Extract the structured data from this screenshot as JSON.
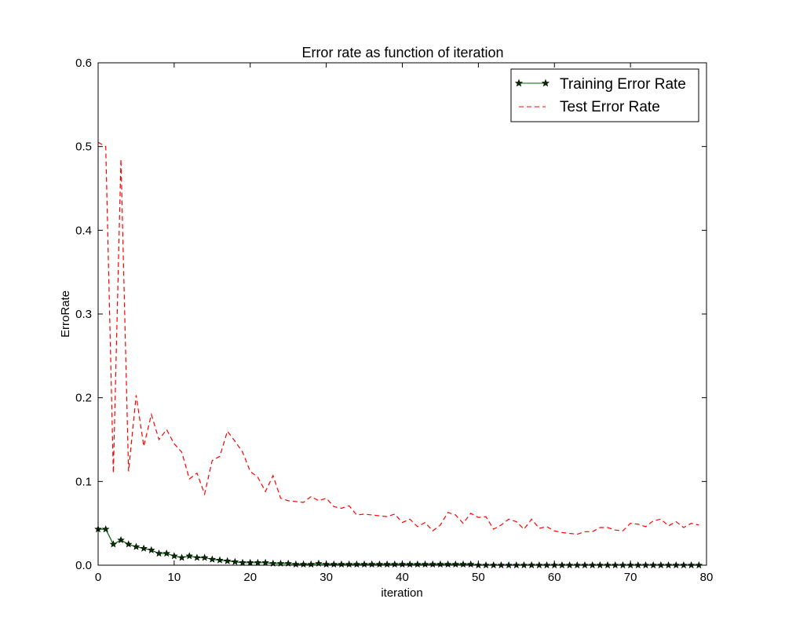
{
  "chart_data": {
    "type": "line",
    "title": "Error rate as function of iteration",
    "xlabel": "iteration",
    "ylabel": "ErroRate",
    "xlim": [
      0,
      80
    ],
    "ylim": [
      0,
      0.6
    ],
    "xticks": [
      0,
      10,
      20,
      30,
      40,
      50,
      60,
      70,
      80
    ],
    "yticks": [
      0.0,
      0.1,
      0.2,
      0.3,
      0.4,
      0.5,
      0.6
    ],
    "xtick_labels": [
      "0",
      "10",
      "20",
      "30",
      "40",
      "50",
      "60",
      "70",
      "80"
    ],
    "ytick_labels": [
      "0.0",
      "0.1",
      "0.2",
      "0.3",
      "0.4",
      "0.5",
      "0.6"
    ],
    "grid": false,
    "legend_position": "top-right",
    "x": [
      0,
      1,
      2,
      3,
      4,
      5,
      6,
      7,
      8,
      9,
      10,
      11,
      12,
      13,
      14,
      15,
      16,
      17,
      18,
      19,
      20,
      21,
      22,
      23,
      24,
      25,
      26,
      27,
      28,
      29,
      30,
      31,
      32,
      33,
      34,
      35,
      36,
      37,
      38,
      39,
      40,
      41,
      42,
      43,
      44,
      45,
      46,
      47,
      48,
      49,
      50,
      51,
      52,
      53,
      54,
      55,
      56,
      57,
      58,
      59,
      60,
      61,
      62,
      63,
      64,
      65,
      66,
      67,
      68,
      69,
      70,
      71,
      72,
      73,
      74,
      75,
      76,
      77,
      78,
      79
    ],
    "series": [
      {
        "name": "Training Error Rate",
        "color": "#006400",
        "style": "solid",
        "marker": "star",
        "values": [
          0.043,
          0.043,
          0.025,
          0.03,
          0.025,
          0.022,
          0.02,
          0.018,
          0.014,
          0.014,
          0.011,
          0.009,
          0.011,
          0.009,
          0.009,
          0.007,
          0.006,
          0.005,
          0.004,
          0.003,
          0.003,
          0.003,
          0.003,
          0.002,
          0.002,
          0.002,
          0.001,
          0.001,
          0.001,
          0.002,
          0.001,
          0.001,
          0.001,
          0.001,
          0.001,
          0.001,
          0.001,
          0.001,
          0.001,
          0.001,
          0.001,
          0.001,
          0.001,
          0.001,
          0.001,
          0.001,
          0.001,
          0.001,
          0.001,
          0.001,
          0.0,
          0.0,
          0.0,
          0.0,
          0.0,
          0.0,
          0.0,
          0.0,
          0.0,
          0.0,
          0.0,
          0.0,
          0.0,
          0.0,
          0.0,
          0.0,
          0.0,
          0.0,
          0.0,
          0.0,
          0.0,
          0.0,
          0.0,
          0.0,
          0.0,
          0.0,
          0.0,
          0.0,
          0.0,
          0.0
        ]
      },
      {
        "name": "Test Error Rate",
        "color": "#ff0000",
        "style": "dashed",
        "marker": "none",
        "values": [
          0.505,
          0.5,
          0.11,
          0.485,
          0.112,
          0.203,
          0.142,
          0.18,
          0.15,
          0.162,
          0.145,
          0.135,
          0.103,
          0.11,
          0.085,
          0.125,
          0.13,
          0.16,
          0.148,
          0.135,
          0.112,
          0.105,
          0.088,
          0.107,
          0.08,
          0.077,
          0.076,
          0.075,
          0.082,
          0.077,
          0.08,
          0.07,
          0.068,
          0.071,
          0.06,
          0.061,
          0.06,
          0.059,
          0.058,
          0.061,
          0.051,
          0.055,
          0.046,
          0.051,
          0.041,
          0.048,
          0.063,
          0.06,
          0.05,
          0.062,
          0.057,
          0.058,
          0.043,
          0.048,
          0.055,
          0.052,
          0.043,
          0.055,
          0.044,
          0.046,
          0.041,
          0.039,
          0.038,
          0.037,
          0.04,
          0.04,
          0.045,
          0.045,
          0.042,
          0.041,
          0.05,
          0.049,
          0.046,
          0.053,
          0.055,
          0.047,
          0.052,
          0.045,
          0.05,
          0.048
        ]
      }
    ]
  }
}
